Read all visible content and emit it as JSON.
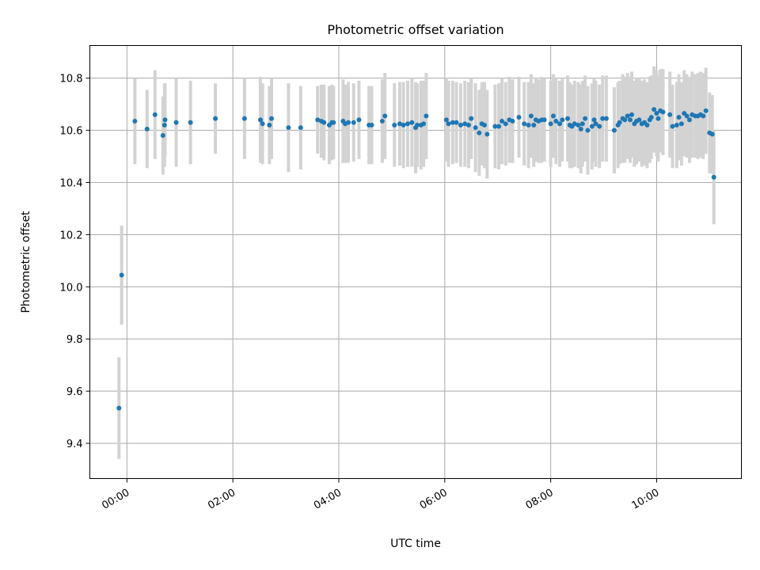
{
  "chart_data": {
    "type": "scatter",
    "title": "Photometric offset variation",
    "xlabel": "UTC time",
    "ylabel": "Photometric offset",
    "x_unit": "hours UTC",
    "xlim": [
      -0.7,
      11.6
    ],
    "ylim": [
      9.265,
      10.925
    ],
    "grid": true,
    "legend": "none",
    "x_ticks": [
      {
        "value": 0,
        "label": "00:00"
      },
      {
        "value": 2,
        "label": "02:00"
      },
      {
        "value": 4,
        "label": "04:00"
      },
      {
        "value": 6,
        "label": "06:00"
      },
      {
        "value": 8,
        "label": "08:00"
      },
      {
        "value": 10,
        "label": "10:00"
      }
    ],
    "y_ticks": [
      {
        "value": 9.4,
        "label": "9.4"
      },
      {
        "value": 9.6,
        "label": "9.6"
      },
      {
        "value": 9.8,
        "label": "9.8"
      },
      {
        "value": 10.0,
        "label": "10.0"
      },
      {
        "value": 10.2,
        "label": "10.2"
      },
      {
        "value": 10.4,
        "label": "10.4"
      },
      {
        "value": 10.6,
        "label": "10.6"
      },
      {
        "value": 10.8,
        "label": "10.8"
      }
    ],
    "colors": {
      "point": "#1f77b4",
      "errorbar": "#d3d3d3",
      "grid": "#b0b0b0"
    },
    "series": [
      {
        "x": [
          -0.15,
          -0.1,
          0.15,
          0.38,
          0.53,
          0.68,
          0.71,
          0.72,
          0.93,
          1.2,
          1.67,
          2.22,
          2.52,
          2.56,
          2.69,
          2.73,
          3.05,
          3.28,
          3.6,
          3.67,
          3.72,
          3.82,
          3.87,
          3.9,
          4.08,
          4.12,
          4.18,
          4.28,
          4.38,
          4.57,
          4.62,
          4.82,
          4.87,
          5.05,
          5.15,
          5.22,
          5.3,
          5.38,
          5.45,
          5.48,
          5.55,
          5.6,
          5.65,
          6.03,
          6.07,
          6.15,
          6.22,
          6.3,
          6.38,
          6.45,
          6.5,
          6.58,
          6.65,
          6.7,
          6.75,
          6.8,
          6.95,
          7.02,
          7.08,
          7.15,
          7.22,
          7.28,
          7.4,
          7.5,
          7.58,
          7.63,
          7.68,
          7.72,
          7.77,
          7.83,
          7.88,
          8.0,
          8.05,
          8.1,
          8.17,
          8.22,
          8.32,
          8.36,
          8.4,
          8.45,
          8.52,
          8.57,
          8.6,
          8.65,
          8.7,
          8.78,
          8.82,
          8.85,
          8.92,
          8.98,
          9.05,
          9.2,
          9.27,
          9.3,
          9.36,
          9.4,
          9.45,
          9.5,
          9.53,
          9.58,
          9.62,
          9.67,
          9.72,
          9.77,
          9.82,
          9.87,
          9.9,
          9.95,
          10.0,
          10.03,
          10.07,
          10.12,
          10.25,
          10.3,
          10.38,
          10.42,
          10.47,
          10.52,
          10.57,
          10.62,
          10.67,
          10.73,
          10.78,
          10.83,
          10.88,
          10.93,
          11.0,
          11.05,
          11.08
        ],
        "y": [
          9.535,
          10.045,
          10.635,
          10.605,
          10.66,
          10.58,
          10.62,
          10.64,
          10.63,
          10.63,
          10.645,
          10.645,
          10.64,
          10.625,
          10.62,
          10.645,
          10.61,
          10.61,
          10.64,
          10.635,
          10.63,
          10.62,
          10.63,
          10.63,
          10.635,
          10.625,
          10.63,
          10.63,
          10.64,
          10.62,
          10.62,
          10.635,
          10.655,
          10.62,
          10.625,
          10.62,
          10.625,
          10.63,
          10.61,
          10.62,
          10.62,
          10.625,
          10.655,
          10.64,
          10.625,
          10.63,
          10.63,
          10.62,
          10.625,
          10.62,
          10.645,
          10.61,
          10.59,
          10.625,
          10.62,
          10.585,
          10.615,
          10.615,
          10.635,
          10.625,
          10.64,
          10.635,
          10.65,
          10.625,
          10.62,
          10.655,
          10.62,
          10.64,
          10.635,
          10.64,
          10.64,
          10.625,
          10.655,
          10.635,
          10.625,
          10.64,
          10.645,
          10.62,
          10.615,
          10.625,
          10.62,
          10.605,
          10.625,
          10.645,
          10.6,
          10.615,
          10.64,
          10.625,
          10.615,
          10.645,
          10.645,
          10.6,
          10.62,
          10.63,
          10.645,
          10.64,
          10.655,
          10.64,
          10.66,
          10.625,
          10.635,
          10.64,
          10.625,
          10.63,
          10.62,
          10.64,
          10.65,
          10.68,
          10.665,
          10.645,
          10.675,
          10.67,
          10.66,
          10.615,
          10.62,
          10.65,
          10.625,
          10.665,
          10.655,
          10.64,
          10.66,
          10.655,
          10.655,
          10.66,
          10.655,
          10.675,
          10.59,
          10.585,
          10.42
        ],
        "yerr": [
          0.195,
          0.19,
          0.165,
          0.15,
          0.17,
          0.15,
          0.16,
          0.14,
          0.17,
          0.16,
          0.135,
          0.155,
          0.165,
          0.155,
          0.15,
          0.155,
          0.17,
          0.16,
          0.13,
          0.14,
          0.145,
          0.15,
          0.145,
          0.14,
          0.16,
          0.15,
          0.155,
          0.15,
          0.15,
          0.15,
          0.15,
          0.16,
          0.165,
          0.16,
          0.16,
          0.165,
          0.165,
          0.17,
          0.175,
          0.16,
          0.17,
          0.165,
          0.165,
          0.16,
          0.165,
          0.16,
          0.155,
          0.16,
          0.165,
          0.165,
          0.155,
          0.17,
          0.165,
          0.16,
          0.165,
          0.17,
          0.16,
          0.165,
          0.165,
          0.16,
          0.165,
          0.16,
          0.155,
          0.16,
          0.165,
          0.16,
          0.16,
          0.16,
          0.16,
          0.165,
          0.16,
          0.165,
          0.16,
          0.165,
          0.165,
          0.16,
          0.165,
          0.165,
          0.16,
          0.165,
          0.165,
          0.17,
          0.165,
          0.165,
          0.17,
          0.165,
          0.16,
          0.165,
          0.16,
          0.165,
          0.165,
          0.165,
          0.165,
          0.16,
          0.17,
          0.165,
          0.165,
          0.165,
          0.165,
          0.165,
          0.165,
          0.16,
          0.165,
          0.165,
          0.165,
          0.165,
          0.16,
          0.165,
          0.165,
          0.165,
          0.16,
          0.165,
          0.165,
          0.16,
          0.165,
          0.165,
          0.16,
          0.165,
          0.16,
          0.165,
          0.165,
          0.16,
          0.165,
          0.165,
          0.165,
          0.165,
          0.155,
          0.15,
          0.18
        ]
      }
    ]
  }
}
